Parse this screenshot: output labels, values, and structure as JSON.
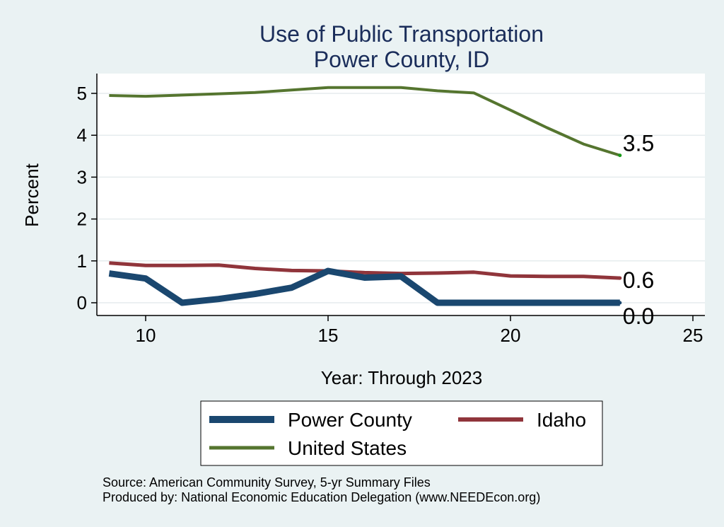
{
  "chart_data": {
    "type": "line",
    "title": [
      "Use of Public Transportation",
      "Power County, ID"
    ],
    "xlabel": "Year: Through 2023",
    "ylabel": "Percent",
    "xlim": [
      9,
      25
    ],
    "ylim": [
      0,
      5.2
    ],
    "xticks": [
      10,
      15,
      20,
      25
    ],
    "yticks": [
      0,
      1,
      2,
      3,
      4,
      5
    ],
    "grid": true,
    "legend_position": "bottom",
    "series": [
      {
        "name": "Power County",
        "color": "#1a476f",
        "x": [
          9,
          10,
          11,
          12,
          13,
          14,
          15,
          16,
          17,
          18,
          19,
          20,
          21,
          22,
          23
        ],
        "y": [
          0.7,
          0.58,
          0.0,
          0.09,
          0.21,
          0.36,
          0.76,
          0.6,
          0.63,
          0.0,
          0.0,
          0.0,
          0.0,
          0.0,
          0.0
        ],
        "end_label": "0.0"
      },
      {
        "name": "Idaho",
        "color": "#90353b",
        "x": [
          9,
          10,
          11,
          12,
          13,
          14,
          15,
          16,
          17,
          18,
          19,
          20,
          21,
          22,
          23
        ],
        "y": [
          0.95,
          0.89,
          0.89,
          0.9,
          0.82,
          0.77,
          0.76,
          0.72,
          0.7,
          0.71,
          0.73,
          0.64,
          0.63,
          0.63,
          0.59
        ],
        "end_label": "0.6"
      },
      {
        "name": "United States",
        "color": "#55752f",
        "x": [
          9,
          10,
          11,
          12,
          13,
          14,
          15,
          16,
          17,
          18,
          19,
          20,
          21,
          22,
          23
        ],
        "y": [
          4.95,
          4.93,
          4.96,
          4.99,
          5.02,
          5.08,
          5.14,
          5.14,
          5.14,
          5.06,
          5.01,
          4.6,
          4.18,
          3.79,
          3.52
        ],
        "end_label": "3.5"
      }
    ],
    "legend": {
      "items": [
        "Power County",
        "Idaho",
        "United States"
      ]
    },
    "notes": [
      "Source: American Community Survey, 5-yr Summary Files",
      "Produced by: National Economic Education Delegation (www.NEEDEcon.org)"
    ]
  }
}
